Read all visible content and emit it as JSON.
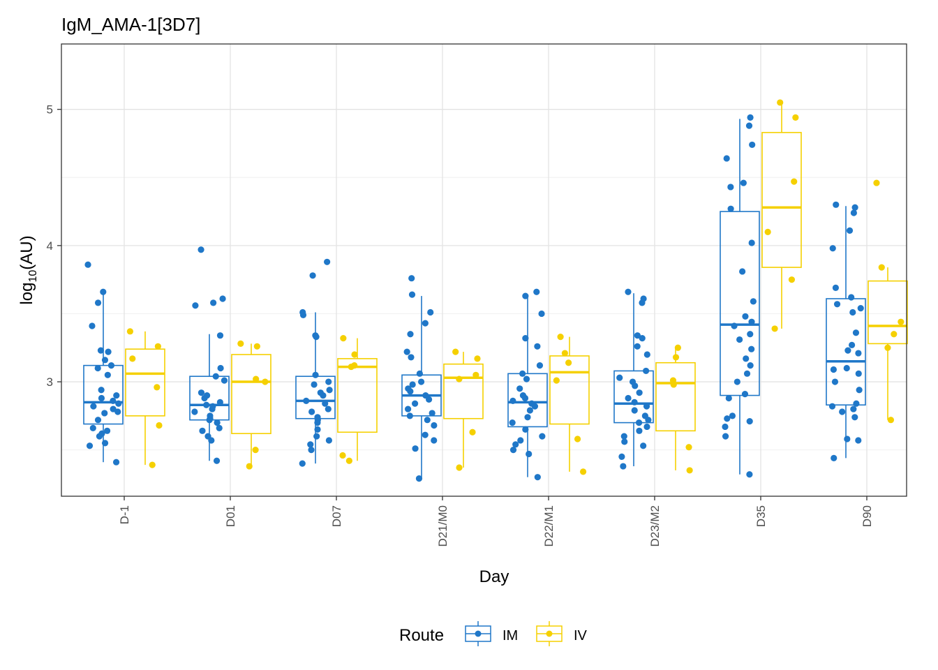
{
  "chart_data": {
    "type": "box",
    "title": "IgM_AMA-1[3D7]",
    "xlabel": "Day",
    "ylabel_main": "log",
    "ylabel_sub": "10",
    "ylabel_rest": "(AU)",
    "ylim": [
      2.16,
      5.48
    ],
    "yticks": [
      3,
      4,
      5
    ],
    "grid": true,
    "legend": {
      "title": "Route",
      "position": "bottom"
    },
    "colors": {
      "IM": "#1f77c8",
      "IV": "#f5d000"
    },
    "categories": [
      "D-1",
      "D01",
      "D07",
      "D21/M0",
      "D22/M1",
      "D23/M2",
      "D35",
      "D90"
    ],
    "series": [
      {
        "name": "IM",
        "boxes": [
          {
            "min": 2.41,
            "q1": 2.69,
            "median": 2.85,
            "q3": 3.12,
            "max": 3.66
          },
          {
            "min": 2.42,
            "q1": 2.72,
            "median": 2.83,
            "q3": 3.04,
            "max": 3.35
          },
          {
            "min": 2.4,
            "q1": 2.73,
            "median": 2.86,
            "q3": 3.04,
            "max": 3.51
          },
          {
            "min": 2.29,
            "q1": 2.75,
            "median": 2.9,
            "q3": 3.05,
            "max": 3.63
          },
          {
            "min": 2.3,
            "q1": 2.67,
            "median": 2.85,
            "q3": 3.06,
            "max": 3.63
          },
          {
            "min": 2.38,
            "q1": 2.7,
            "median": 2.84,
            "q3": 3.08,
            "max": 3.65
          },
          {
            "min": 2.32,
            "q1": 2.9,
            "median": 3.42,
            "q3": 4.25,
            "max": 4.93
          },
          {
            "min": 2.44,
            "q1": 2.83,
            "median": 3.15,
            "q3": 3.61,
            "max": 4.29
          }
        ],
        "points": [
          [
            2.41,
            2.53,
            2.55,
            2.6,
            2.62,
            2.64,
            2.66,
            2.72,
            2.77,
            2.78,
            2.8,
            2.82,
            2.84,
            2.86,
            2.88,
            2.9,
            2.94,
            3.05,
            3.1,
            3.12,
            3.16,
            3.22,
            3.23,
            3.41,
            3.58,
            3.66,
            3.86
          ],
          [
            2.42,
            2.57,
            2.6,
            2.64,
            2.66,
            2.7,
            2.72,
            2.73,
            2.75,
            2.78,
            2.8,
            2.82,
            2.83,
            2.85,
            2.88,
            2.9,
            2.92,
            3.01,
            3.04,
            3.1,
            3.34,
            3.56,
            3.58,
            3.61,
            3.97
          ],
          [
            2.4,
            2.5,
            2.54,
            2.57,
            2.6,
            2.65,
            2.7,
            2.72,
            2.74,
            2.78,
            2.8,
            2.84,
            2.86,
            2.9,
            2.92,
            2.94,
            2.98,
            3.0,
            3.05,
            3.33,
            3.34,
            3.49,
            3.51,
            3.78,
            3.88
          ],
          [
            2.29,
            2.51,
            2.57,
            2.61,
            2.68,
            2.72,
            2.75,
            2.77,
            2.8,
            2.84,
            2.87,
            2.9,
            2.93,
            2.95,
            2.98,
            3.0,
            3.06,
            3.18,
            3.22,
            3.35,
            3.43,
            3.51,
            3.64,
            3.76
          ],
          [
            2.3,
            2.47,
            2.5,
            2.54,
            2.57,
            2.6,
            2.65,
            2.7,
            2.74,
            2.79,
            2.82,
            2.84,
            2.86,
            2.88,
            2.9,
            2.95,
            3.02,
            3.06,
            3.12,
            3.26,
            3.32,
            3.5,
            3.63,
            3.66
          ],
          [
            2.38,
            2.45,
            2.53,
            2.56,
            2.6,
            2.64,
            2.67,
            2.7,
            2.72,
            2.75,
            2.79,
            2.82,
            2.85,
            2.88,
            2.92,
            2.97,
            3.0,
            3.03,
            3.08,
            3.2,
            3.26,
            3.32,
            3.34,
            3.58,
            3.61,
            3.66
          ],
          [
            2.32,
            2.6,
            2.67,
            2.71,
            2.73,
            2.75,
            2.88,
            2.91,
            3.0,
            3.06,
            3.12,
            3.17,
            3.24,
            3.31,
            3.35,
            3.41,
            3.44,
            3.48,
            3.59,
            3.81,
            4.02,
            4.27,
            4.43,
            4.46,
            4.64,
            4.74,
            4.88,
            4.94
          ],
          [
            2.44,
            2.57,
            2.58,
            2.74,
            2.78,
            2.8,
            2.82,
            2.84,
            2.94,
            3.0,
            3.06,
            3.09,
            3.1,
            3.21,
            3.23,
            3.27,
            3.36,
            3.51,
            3.54,
            3.57,
            3.62,
            3.69,
            3.98,
            4.11,
            4.24,
            4.28,
            4.3
          ]
        ]
      },
      {
        "name": "IV",
        "boxes": [
          {
            "min": 2.39,
            "q1": 2.75,
            "median": 3.06,
            "q3": 3.24,
            "max": 3.37
          },
          {
            "min": 2.38,
            "q1": 2.62,
            "median": 3.0,
            "q3": 3.2,
            "max": 3.28
          },
          {
            "min": 2.42,
            "q1": 2.63,
            "median": 3.11,
            "q3": 3.17,
            "max": 3.32
          },
          {
            "min": 2.37,
            "q1": 2.73,
            "median": 3.03,
            "q3": 3.13,
            "max": 3.22
          },
          {
            "min": 2.34,
            "q1": 2.69,
            "median": 3.07,
            "q3": 3.19,
            "max": 3.33
          },
          {
            "min": 2.35,
            "q1": 2.64,
            "median": 2.99,
            "q3": 3.14,
            "max": 3.25
          },
          {
            "min": 3.39,
            "q1": 3.84,
            "median": 4.28,
            "q3": 4.83,
            "max": 5.05
          },
          {
            "min": 2.72,
            "q1": 3.28,
            "median": 3.41,
            "q3": 3.74,
            "max": 3.84
          }
        ],
        "points": [
          [
            2.39,
            2.68,
            2.96,
            3.17,
            3.26,
            3.37
          ],
          [
            2.38,
            2.5,
            3.0,
            3.02,
            3.26,
            3.28
          ],
          [
            2.42,
            2.46,
            3.11,
            3.12,
            3.2,
            3.32
          ],
          [
            2.37,
            2.63,
            3.02,
            3.05,
            3.17,
            3.22
          ],
          [
            2.34,
            2.58,
            3.01,
            3.14,
            3.21,
            3.33
          ],
          [
            2.35,
            2.52,
            2.98,
            3.01,
            3.18,
            3.25
          ],
          [
            3.39,
            3.75,
            4.1,
            4.47,
            4.94,
            5.05
          ],
          [
            2.72,
            3.25,
            3.35,
            3.44,
            3.84,
            4.46
          ]
        ]
      }
    ]
  }
}
